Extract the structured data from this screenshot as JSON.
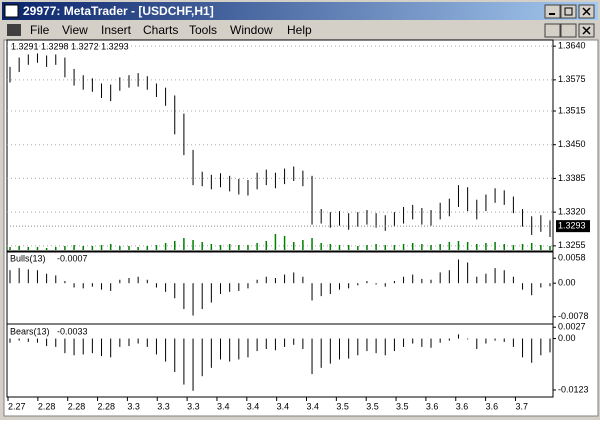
{
  "window": {
    "title": "29977: MetaTrader - [USDCHF,H1]"
  },
  "menu": [
    "File",
    "View",
    "Insert",
    "Charts",
    "Tools",
    "Window",
    "Help"
  ],
  "x_labels": [
    "2.27",
    "2.28",
    "2.28",
    "2.28",
    "3.3",
    "3.3",
    "3.3",
    "3.4",
    "3.4",
    "3.4",
    "3.4",
    "3.5",
    "3.5",
    "3.5",
    "3.6",
    "3.6",
    "3.6",
    "3.7"
  ],
  "chart_data": [
    {
      "type": "ohlc",
      "symbol_info": "1.3291 1.3298 1.3272 1.3293",
      "high": [
        1.36,
        1.3618,
        1.3624,
        1.3626,
        1.3622,
        1.3624,
        1.3618,
        1.3596,
        1.3584,
        1.3578,
        1.3568,
        1.3566,
        1.358,
        1.3584,
        1.3588,
        1.3582,
        1.3568,
        1.356,
        1.3545,
        1.351,
        1.344,
        1.3398,
        1.3392,
        1.3395,
        1.339,
        1.3384,
        1.3382,
        1.3396,
        1.3402,
        1.3396,
        1.3404,
        1.3408,
        1.34,
        1.339,
        1.3326,
        1.332,
        1.3322,
        1.3318,
        1.332,
        1.3324,
        1.3318,
        1.3314,
        1.332,
        1.333,
        1.3334,
        1.3328,
        1.3324,
        1.3338,
        1.3346,
        1.3372,
        1.3368,
        1.3344,
        1.3354,
        1.3366,
        1.3362,
        1.335,
        1.3326,
        1.3312,
        1.3314,
        1.3304
      ],
      "low": [
        1.357,
        1.359,
        1.3604,
        1.3608,
        1.36,
        1.3604,
        1.358,
        1.3564,
        1.3556,
        1.3552,
        1.354,
        1.3534,
        1.3554,
        1.356,
        1.3562,
        1.3556,
        1.3542,
        1.3525,
        1.347,
        1.343,
        1.3372,
        1.337,
        1.3364,
        1.3368,
        1.336,
        1.3354,
        1.3352,
        1.3364,
        1.3372,
        1.3366,
        1.3374,
        1.338,
        1.337,
        1.3296,
        1.3298,
        1.329,
        1.3294,
        1.3286,
        1.3292,
        1.3296,
        1.329,
        1.3284,
        1.3292,
        1.3298,
        1.3306,
        1.3296,
        1.3294,
        1.3306,
        1.3312,
        1.333,
        1.3322,
        1.3306,
        1.3322,
        1.3338,
        1.3334,
        1.3318,
        1.3292,
        1.3276,
        1.3282,
        1.3272
      ],
      "volume": [
        3,
        4,
        3,
        3,
        2,
        3,
        4,
        5,
        4,
        4,
        5,
        6,
        4,
        4,
        3,
        4,
        5,
        7,
        9,
        12,
        10,
        8,
        6,
        5,
        6,
        5,
        5,
        7,
        9,
        16,
        14,
        8,
        10,
        12,
        7,
        6,
        5,
        5,
        4,
        5,
        6,
        5,
        5,
        6,
        7,
        6,
        5,
        6,
        8,
        9,
        8,
        6,
        7,
        8,
        6,
        5,
        6,
        7,
        5,
        4
      ],
      "volume_ylim": [
        0,
        20
      ],
      "ylim": [
        1.3247,
        1.3648
      ],
      "yticks": [
        {
          "value": 1.364,
          "label": "1.3640"
        },
        1.3575,
        1.3515,
        {
          "value": 1.345,
          "label": "1.3450"
        },
        1.3385,
        {
          "value": 1.332,
          "label": "1.3320"
        },
        1.3255
      ],
      "current_price": 1.3293,
      "color": "#000000",
      "volume_color": "#008000",
      "grid": true
    },
    {
      "type": "bar",
      "title": "Bulls(13)",
      "last_value": -0.0007,
      "color": "#000000",
      "values": [
        0.003,
        0.0035,
        0.0032,
        0.003,
        0.0022,
        0.0018,
        0.0005,
        -0.001,
        -0.0012,
        -0.0008,
        -0.0015,
        -0.0018,
        0.0008,
        0.0012,
        0.0015,
        0.0008,
        -0.001,
        -0.002,
        -0.0035,
        -0.006,
        -0.0075,
        -0.006,
        -0.0045,
        -0.0025,
        -0.002,
        -0.0018,
        -0.0012,
        0.0008,
        0.0015,
        0.0012,
        0.002,
        0.0025,
        0.0015,
        -0.004,
        -0.003,
        -0.0025,
        -0.0015,
        -0.0012,
        -0.0005,
        0.0005,
        -0.0003,
        -0.0008,
        0.0005,
        0.0015,
        0.002,
        0.001,
        0.0008,
        0.0025,
        0.003,
        0.0055,
        0.0048,
        0.0015,
        0.0022,
        0.0035,
        0.003,
        0.0015,
        -0.0015,
        -0.0028,
        -0.001,
        -0.0007
      ],
      "ylim": [
        -0.009,
        0.007
      ],
      "yticks": [
        0.0058,
        {
          "value": 0,
          "label": "0.00"
        },
        -0.0078
      ]
    },
    {
      "type": "bar",
      "title": "Bears(13)",
      "last_value": -0.0033,
      "color": "#000000",
      "values": [
        -0.001,
        -0.0005,
        -0.0008,
        -0.001,
        -0.0018,
        -0.002,
        -0.0035,
        -0.004,
        -0.0038,
        -0.0035,
        -0.0042,
        -0.0045,
        -0.002,
        -0.0018,
        -0.0012,
        -0.002,
        -0.0038,
        -0.0055,
        -0.008,
        -0.011,
        -0.0125,
        -0.009,
        -0.007,
        -0.005,
        -0.0055,
        -0.005,
        -0.0045,
        -0.003,
        -0.0025,
        -0.0028,
        -0.002,
        -0.0015,
        -0.0025,
        -0.0085,
        -0.007,
        -0.006,
        -0.005,
        -0.0048,
        -0.004,
        -0.003,
        -0.0035,
        -0.004,
        -0.003,
        -0.002,
        -0.0012,
        -0.002,
        -0.0022,
        -0.001,
        -0.0005,
        0.001,
        -0.0002,
        -0.0025,
        -0.0012,
        -0.0005,
        -0.0008,
        -0.002,
        -0.0045,
        -0.0058,
        -0.004,
        -0.0033
      ],
      "ylim": [
        -0.0135,
        0.003
      ],
      "yticks": [
        0.0027,
        {
          "value": 0,
          "label": "0.00"
        },
        -0.0123
      ]
    }
  ]
}
